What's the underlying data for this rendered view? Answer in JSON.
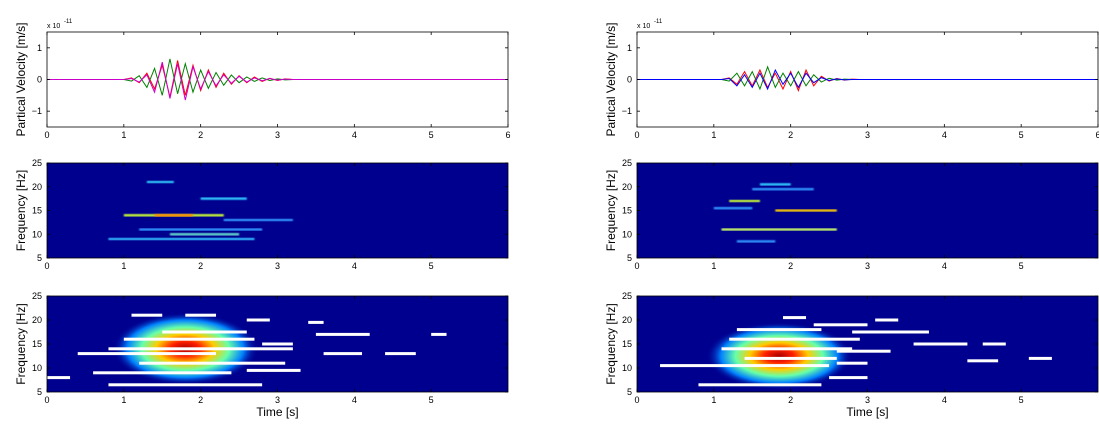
{
  "chart_data": [
    {
      "type": "line",
      "ylabel": "Partical Velocity [m/s]",
      "y_offset_text": "x 10",
      "y_offset_exponent": "-11",
      "xlim": [
        0,
        6
      ],
      "xticks": [
        0,
        1,
        2,
        3,
        4,
        5,
        6
      ],
      "ylim": [
        -1.5,
        1.5
      ],
      "yticks": [
        {
          "value": -1,
          "label": "−1"
        },
        0,
        1
      ],
      "x": [
        0,
        1.0,
        1.1,
        1.2,
        1.3,
        1.4,
        1.5,
        1.6,
        1.7,
        1.8,
        1.9,
        2.0,
        2.1,
        2.2,
        2.3,
        2.4,
        2.5,
        2.6,
        2.7,
        2.8,
        2.9,
        3.0,
        3.1,
        3.2,
        6
      ],
      "series": [
        {
          "color": "#ff0000",
          "values": [
            0,
            0,
            0.05,
            -0.1,
            0.2,
            -0.3,
            0.45,
            -0.55,
            0.6,
            -0.5,
            0.45,
            -0.35,
            0.3,
            -0.25,
            0.2,
            -0.15,
            0.12,
            -0.1,
            0.08,
            -0.06,
            0.04,
            -0.03,
            0.02,
            0,
            0
          ]
        },
        {
          "color": "#008000",
          "values": [
            0,
            0,
            -0.05,
            0.12,
            -0.25,
            0.35,
            -0.5,
            0.65,
            -0.45,
            0.5,
            -0.4,
            0.3,
            -0.28,
            0.22,
            -0.18,
            0.14,
            -0.1,
            0.08,
            -0.06,
            0.05,
            -0.03,
            0.02,
            -0.01,
            0,
            0
          ]
        },
        {
          "color": "#cc00cc",
          "values": [
            0,
            0,
            0.03,
            -0.08,
            0.15,
            -0.4,
            0.55,
            -0.6,
            0.5,
            -0.65,
            0.4,
            -0.3,
            0.25,
            -0.2,
            0.15,
            -0.12,
            0.1,
            -0.08,
            0.05,
            -0.04,
            0.03,
            -0.02,
            0.01,
            0,
            0
          ]
        }
      ]
    },
    {
      "type": "line",
      "ylabel": "Partical Velocity [m/s]",
      "y_offset_text": "x 10",
      "y_offset_exponent": "-11",
      "xlim": [
        0,
        6
      ],
      "xticks": [
        0,
        1,
        2,
        3,
        4,
        5,
        6
      ],
      "ylim": [
        -1.5,
        1.5
      ],
      "yticks": [
        {
          "value": -1,
          "label": "−1"
        },
        0,
        1
      ],
      "x": [
        0,
        1.0,
        1.1,
        1.2,
        1.3,
        1.4,
        1.5,
        1.6,
        1.7,
        1.8,
        1.9,
        2.0,
        2.1,
        2.2,
        2.3,
        2.4,
        2.5,
        2.6,
        2.7,
        2.8,
        2.9,
        3.0,
        3.1,
        3.2,
        6
      ],
      "series": [
        {
          "color": "#ff0000",
          "values": [
            0,
            0,
            0,
            0.05,
            -0.15,
            0.25,
            -0.2,
            0.3,
            -0.25,
            0.2,
            -0.3,
            0.25,
            -0.35,
            0.3,
            -0.2,
            0.1,
            -0.05,
            0.03,
            -0.02,
            0.01,
            0,
            0,
            0,
            0,
            0
          ]
        },
        {
          "color": "#008000",
          "values": [
            0,
            0,
            0,
            -0.05,
            0.2,
            -0.2,
            0.25,
            -0.3,
            0.4,
            -0.25,
            0.2,
            -0.2,
            0.25,
            -0.2,
            0.15,
            -0.08,
            0.04,
            -0.02,
            0.01,
            0,
            0,
            0,
            0,
            0,
            0
          ]
        },
        {
          "color": "#0000ff",
          "values": [
            0,
            0,
            0,
            0.03,
            -0.2,
            0.15,
            -0.25,
            0.2,
            -0.3,
            0.3,
            -0.15,
            0.2,
            -0.25,
            0.2,
            -0.1,
            0.06,
            -0.03,
            0.02,
            -0.01,
            0,
            0,
            0,
            0,
            0,
            0
          ]
        }
      ]
    },
    {
      "type": "heatmap",
      "ylabel": "Frequency [Hz]",
      "xlim": [
        0,
        6
      ],
      "xticks": [
        0,
        1,
        2,
        3,
        4,
        5
      ],
      "ylim": [
        5,
        25
      ],
      "yticks": [
        5,
        10,
        15,
        20,
        25
      ],
      "streaks": [
        {
          "start": 1.3,
          "end": 1.65,
          "frequency": 21,
          "color": "#33ccff"
        },
        {
          "start": 1.0,
          "end": 2.3,
          "frequency": 14,
          "color": "#ccff33"
        },
        {
          "start": 1.4,
          "end": 1.9,
          "frequency": 14,
          "color": "#ff8800"
        },
        {
          "start": 2.0,
          "end": 2.6,
          "frequency": 17.5,
          "color": "#33ccff"
        },
        {
          "start": 2.3,
          "end": 3.2,
          "frequency": 13,
          "color": "#3399ff"
        },
        {
          "start": 1.2,
          "end": 2.8,
          "frequency": 11,
          "color": "#3399ff"
        },
        {
          "start": 1.6,
          "end": 2.5,
          "frequency": 10,
          "color": "#66ddcc"
        },
        {
          "start": 0.8,
          "end": 2.7,
          "frequency": 9,
          "color": "#33bbff"
        }
      ]
    },
    {
      "type": "heatmap",
      "ylabel": "Frequency [Hz]",
      "xlim": [
        0,
        6
      ],
      "xticks": [
        0,
        1,
        2,
        3,
        4,
        5
      ],
      "ylim": [
        5,
        25
      ],
      "yticks": [
        5,
        10,
        15,
        20,
        25
      ],
      "streaks": [
        {
          "start": 1.6,
          "end": 2.0,
          "frequency": 20.5,
          "color": "#33ccff"
        },
        {
          "start": 1.5,
          "end": 2.3,
          "frequency": 19.5,
          "color": "#3399ff"
        },
        {
          "start": 1.2,
          "end": 1.6,
          "frequency": 17,
          "color": "#ccff33"
        },
        {
          "start": 1.0,
          "end": 1.5,
          "frequency": 15.5,
          "color": "#3399ff"
        },
        {
          "start": 1.8,
          "end": 2.6,
          "frequency": 15,
          "color": "#ffcc00"
        },
        {
          "start": 1.1,
          "end": 2.6,
          "frequency": 11,
          "color": "#ccff66"
        },
        {
          "start": 1.3,
          "end": 1.8,
          "frequency": 8.5,
          "color": "#3399ff"
        }
      ]
    },
    {
      "type": "heatmap",
      "ylabel": "Frequency [Hz]",
      "xlabel": "Time [s]",
      "xlim": [
        0,
        6
      ],
      "xticks": [
        0,
        1,
        2,
        3,
        4,
        5
      ],
      "ylim": [
        5,
        25
      ],
      "yticks": [
        5,
        10,
        15,
        20,
        25
      ],
      "peak": {
        "time": 1.8,
        "frequency": 14,
        "time_spread": 0.95,
        "frequency_spread": 7.5
      },
      "streaks": [
        {
          "start": 1.1,
          "end": 1.5,
          "frequency": 21,
          "color": "#ffffff"
        },
        {
          "start": 1.8,
          "end": 2.2,
          "frequency": 21,
          "color": "#ffffff"
        },
        {
          "start": 1.5,
          "end": 2.6,
          "frequency": 17.5,
          "color": "#ffffff"
        },
        {
          "start": 2.6,
          "end": 2.9,
          "frequency": 20,
          "color": "#ffffff"
        },
        {
          "start": 3.4,
          "end": 3.6,
          "frequency": 19.5,
          "color": "#ffffff"
        },
        {
          "start": 3.5,
          "end": 4.2,
          "frequency": 17,
          "color": "#ffffff"
        },
        {
          "start": 1.0,
          "end": 2.7,
          "frequency": 16,
          "color": "#ffffff"
        },
        {
          "start": 2.8,
          "end": 3.2,
          "frequency": 15,
          "color": "#ffffff"
        },
        {
          "start": 0.8,
          "end": 3.2,
          "frequency": 14,
          "color": "#ffffff"
        },
        {
          "start": 0.4,
          "end": 2.2,
          "frequency": 13,
          "color": "#ffffff"
        },
        {
          "start": 3.6,
          "end": 4.1,
          "frequency": 13,
          "color": "#ffffff"
        },
        {
          "start": 4.4,
          "end": 4.8,
          "frequency": 13,
          "color": "#ffffff"
        },
        {
          "start": 1.2,
          "end": 3.1,
          "frequency": 11,
          "color": "#ffffff"
        },
        {
          "start": 0.6,
          "end": 2.4,
          "frequency": 9,
          "color": "#ffffff"
        },
        {
          "start": 2.6,
          "end": 3.3,
          "frequency": 9.5,
          "color": "#ffffff"
        },
        {
          "start": 0.0,
          "end": 0.3,
          "frequency": 8,
          "color": "#ffffff"
        },
        {
          "start": 0.8,
          "end": 2.8,
          "frequency": 6.5,
          "color": "#ffffff"
        },
        {
          "start": 5.0,
          "end": 5.2,
          "frequency": 17,
          "color": "#ffffff"
        }
      ]
    },
    {
      "type": "heatmap",
      "ylabel": "Frequency [Hz]",
      "xlabel": "Time [s]",
      "xlim": [
        0,
        6
      ],
      "xticks": [
        0,
        1,
        2,
        3,
        4,
        5
      ],
      "ylim": [
        5,
        25
      ],
      "yticks": [
        5,
        10,
        15,
        20,
        25
      ],
      "peak": {
        "time": 1.85,
        "frequency": 12.5,
        "time_spread": 0.95,
        "frequency_spread": 7
      },
      "streaks": [
        {
          "start": 1.9,
          "end": 2.2,
          "frequency": 20.5,
          "color": "#ffffff"
        },
        {
          "start": 1.3,
          "end": 2.4,
          "frequency": 18,
          "color": "#ffffff"
        },
        {
          "start": 2.3,
          "end": 3.0,
          "frequency": 19,
          "color": "#ffffff"
        },
        {
          "start": 3.1,
          "end": 3.4,
          "frequency": 20,
          "color": "#ffffff"
        },
        {
          "start": 2.8,
          "end": 3.8,
          "frequency": 17.5,
          "color": "#ffffff"
        },
        {
          "start": 1.2,
          "end": 2.9,
          "frequency": 16,
          "color": "#ffffff"
        },
        {
          "start": 3.6,
          "end": 4.3,
          "frequency": 15,
          "color": "#ffffff"
        },
        {
          "start": 4.5,
          "end": 4.8,
          "frequency": 15,
          "color": "#ffffff"
        },
        {
          "start": 1.1,
          "end": 2.8,
          "frequency": 14,
          "color": "#ffffff"
        },
        {
          "start": 2.6,
          "end": 3.3,
          "frequency": 13.5,
          "color": "#ffffff"
        },
        {
          "start": 1.4,
          "end": 2.6,
          "frequency": 12,
          "color": "#ffffff"
        },
        {
          "start": 0.3,
          "end": 2.5,
          "frequency": 10.5,
          "color": "#ffffff"
        },
        {
          "start": 2.6,
          "end": 3.0,
          "frequency": 11,
          "color": "#ffffff"
        },
        {
          "start": 4.3,
          "end": 4.7,
          "frequency": 11.5,
          "color": "#ffffff"
        },
        {
          "start": 5.1,
          "end": 5.4,
          "frequency": 12,
          "color": "#ffffff"
        },
        {
          "start": 0.8,
          "end": 2.4,
          "frequency": 6.5,
          "color": "#ffffff"
        },
        {
          "start": 2.5,
          "end": 3.0,
          "frequency": 8,
          "color": "#ffffff"
        }
      ]
    }
  ]
}
